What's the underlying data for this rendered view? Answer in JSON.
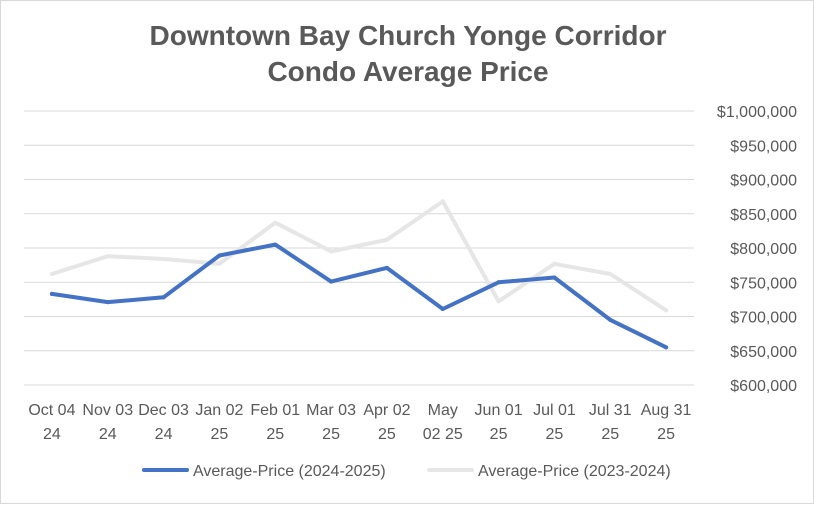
{
  "chart_data": {
    "type": "line",
    "title": [
      "Downtown Bay Church Yonge Corridor",
      "Condo Average Price"
    ],
    "categories": [
      [
        "Oct 04",
        "24"
      ],
      [
        "Nov 03",
        "24"
      ],
      [
        "Dec 03",
        "24"
      ],
      [
        "Jan 02",
        "25"
      ],
      [
        "Feb 01",
        "25"
      ],
      [
        "Mar 03",
        "25"
      ],
      [
        "Apr 02",
        "25"
      ],
      [
        "May",
        "02 25"
      ],
      [
        "Jun 01",
        "25"
      ],
      [
        "Jul 01",
        "25"
      ],
      [
        "Jul 31",
        "25"
      ],
      [
        "Aug 31",
        "25"
      ]
    ],
    "ylim": [
      600000,
      1000000
    ],
    "yticks": [
      {
        "value": 600000,
        "label": "$600,000"
      },
      {
        "value": 650000,
        "label": "$650,000"
      },
      {
        "value": 700000,
        "label": "$700,000"
      },
      {
        "value": 750000,
        "label": "$750,000"
      },
      {
        "value": 800000,
        "label": "$800,000"
      },
      {
        "value": 850000,
        "label": "$850,000"
      },
      {
        "value": 900000,
        "label": "$900,000"
      },
      {
        "value": 950000,
        "label": "$950,000"
      },
      {
        "value": 1000000,
        "label": "$1,000,000"
      }
    ],
    "grid": true,
    "y_axis_position": "right",
    "legend_position": "bottom",
    "series": [
      {
        "name": "Average-Price (2024-2025)",
        "color": "#4472C4",
        "values": [
          733000,
          721000,
          728000,
          789000,
          805000,
          751000,
          771000,
          711000,
          750000,
          757000,
          695000,
          655000
        ]
      },
      {
        "name": "Average-Price (2023-2024)",
        "color": "#E7E6E6",
        "values": [
          762000,
          788000,
          784000,
          777000,
          837000,
          795000,
          812000,
          868000,
          722000,
          777000,
          762000,
          709000
        ]
      }
    ]
  }
}
